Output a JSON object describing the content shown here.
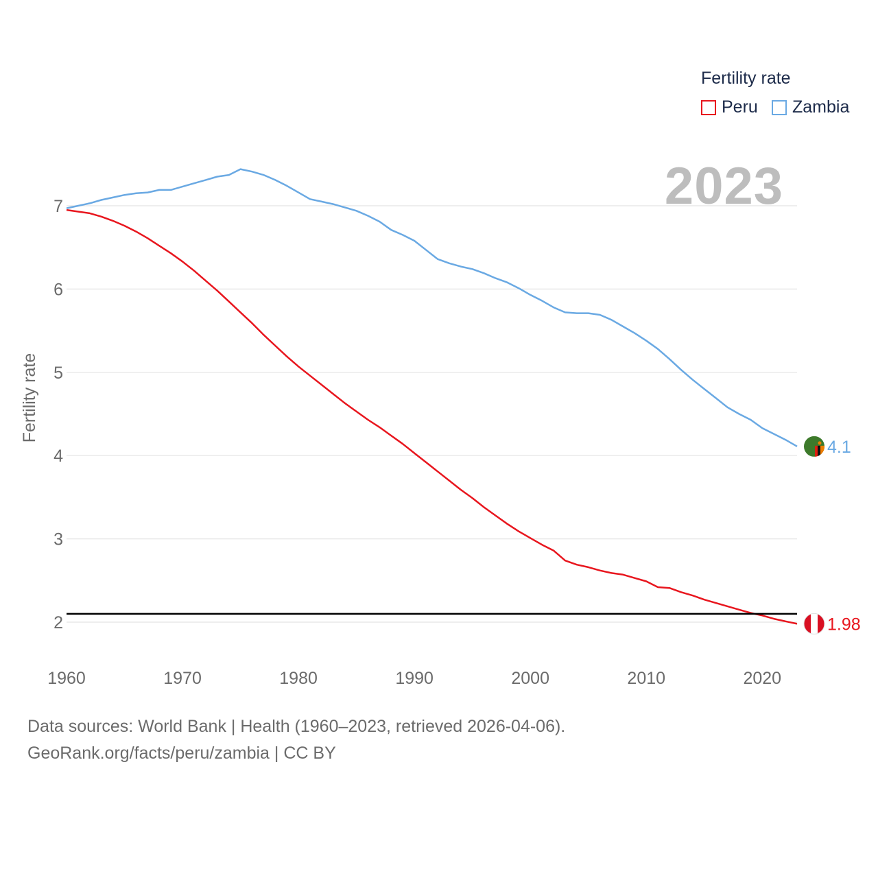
{
  "legend": {
    "title": "Fertility rate",
    "items": [
      {
        "label": "Peru",
        "color": "#e8161e"
      },
      {
        "label": "Zambia",
        "color": "#6aa9e3"
      }
    ]
  },
  "year_display": "2023",
  "footer": {
    "line1": "Data sources: World Bank | Health (1960–2023, retrieved 2026-04-06).",
    "line2": "GeoRank.org/facts/peru/zambia | CC BY"
  },
  "chart_data": {
    "type": "line",
    "title": "Fertility rate",
    "xlabel": "",
    "ylabel": "Fertility rate",
    "xlim": [
      1960,
      2023
    ],
    "ylim": [
      1.5,
      7.6
    ],
    "xticks": [
      1960,
      1970,
      1980,
      1990,
      2000,
      2010,
      2020
    ],
    "yticks": [
      2,
      3,
      4,
      5,
      6,
      7
    ],
    "reference_line": 2.1,
    "x": [
      1960,
      1961,
      1962,
      1963,
      1964,
      1965,
      1966,
      1967,
      1968,
      1969,
      1970,
      1971,
      1972,
      1973,
      1974,
      1975,
      1976,
      1977,
      1978,
      1979,
      1980,
      1981,
      1982,
      1983,
      1984,
      1985,
      1986,
      1987,
      1988,
      1989,
      1990,
      1991,
      1992,
      1993,
      1994,
      1995,
      1996,
      1997,
      1998,
      1999,
      2000,
      2001,
      2002,
      2003,
      2004,
      2005,
      2006,
      2007,
      2008,
      2009,
      2010,
      2011,
      2012,
      2013,
      2014,
      2015,
      2016,
      2017,
      2018,
      2019,
      2020,
      2021,
      2022,
      2023
    ],
    "series": [
      {
        "name": "Peru",
        "color": "#e8161e",
        "end_label": "1.98",
        "flag": "peru-flag-icon",
        "values": [
          6.95,
          6.93,
          6.91,
          6.87,
          6.82,
          6.76,
          6.69,
          6.61,
          6.52,
          6.43,
          6.33,
          6.22,
          6.1,
          5.98,
          5.85,
          5.72,
          5.59,
          5.45,
          5.32,
          5.19,
          5.07,
          4.96,
          4.85,
          4.74,
          4.63,
          4.53,
          4.43,
          4.34,
          4.24,
          4.14,
          4.03,
          3.92,
          3.81,
          3.7,
          3.59,
          3.49,
          3.38,
          3.28,
          3.18,
          3.09,
          3.01,
          2.93,
          2.86,
          2.74,
          2.69,
          2.66,
          2.62,
          2.59,
          2.57,
          2.53,
          2.49,
          2.42,
          2.41,
          2.36,
          2.32,
          2.27,
          2.23,
          2.19,
          2.15,
          2.11,
          2.08,
          2.04,
          2.01,
          1.98
        ]
      },
      {
        "name": "Zambia",
        "color": "#6aa9e3",
        "end_label": "4.1",
        "flag": "zambia-flag-icon",
        "values": [
          6.97,
          7.0,
          7.03,
          7.07,
          7.1,
          7.13,
          7.15,
          7.16,
          7.19,
          7.19,
          7.23,
          7.27,
          7.31,
          7.35,
          7.37,
          7.44,
          7.41,
          7.37,
          7.31,
          7.24,
          7.16,
          7.08,
          7.05,
          7.02,
          6.98,
          6.94,
          6.88,
          6.81,
          6.71,
          6.65,
          6.58,
          6.47,
          6.36,
          6.31,
          6.27,
          6.24,
          6.19,
          6.13,
          6.08,
          6.01,
          5.93,
          5.86,
          5.78,
          5.72,
          5.71,
          5.71,
          5.69,
          5.63,
          5.55,
          5.47,
          5.38,
          5.28,
          5.16,
          5.03,
          4.91,
          4.8,
          4.69,
          4.58,
          4.5,
          4.43,
          4.33,
          4.26,
          4.19,
          4.11
        ]
      }
    ]
  }
}
